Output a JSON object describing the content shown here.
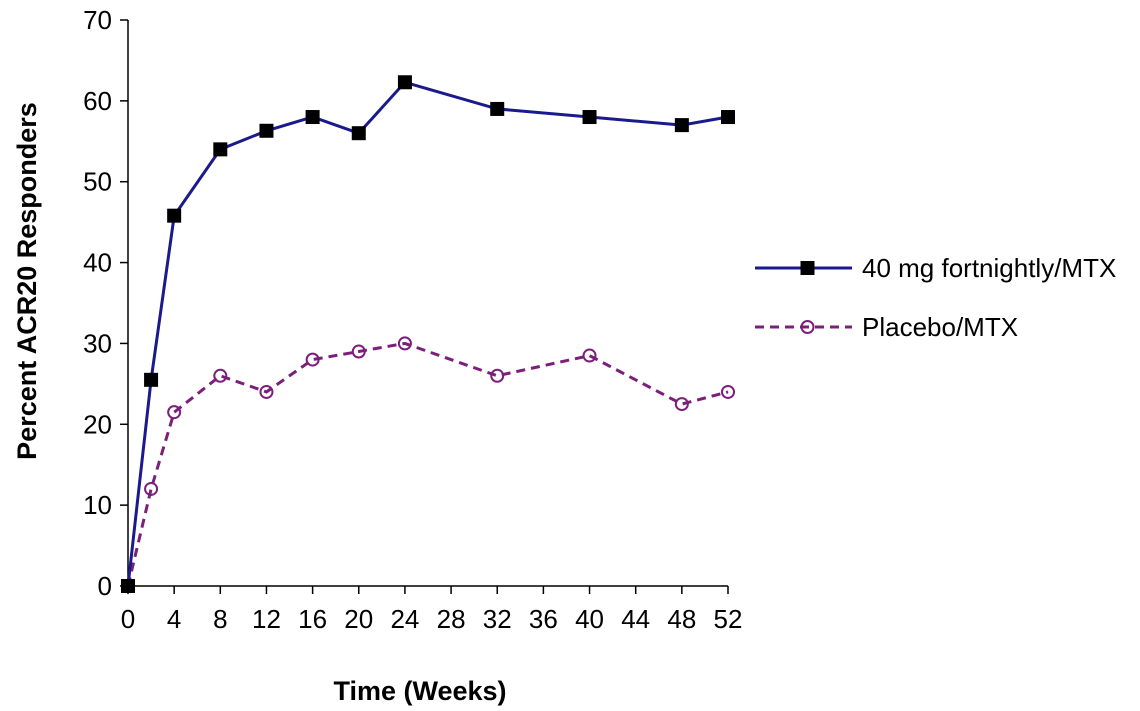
{
  "chart_data": {
    "type": "line",
    "xlabel": "Time (Weeks)",
    "ylabel": "Percent ACR20 Responders",
    "xlim": [
      0,
      52
    ],
    "ylim": [
      0,
      70
    ],
    "xticks": [
      0,
      4,
      8,
      12,
      16,
      20,
      24,
      28,
      32,
      36,
      40,
      44,
      48,
      52
    ],
    "yticks": [
      0,
      10,
      20,
      30,
      40,
      50,
      60,
      70
    ],
    "grid": false,
    "legend_position": "right",
    "series": [
      {
        "name": "40 mg fortnightly/MTX",
        "color": "#1a1a8c",
        "line_style": "solid",
        "marker": "filled-square",
        "points": [
          {
            "x": 0,
            "y": 0
          },
          {
            "x": 2,
            "y": 25.5
          },
          {
            "x": 4,
            "y": 45.8
          },
          {
            "x": 8,
            "y": 54
          },
          {
            "x": 12,
            "y": 56.3
          },
          {
            "x": 16,
            "y": 58
          },
          {
            "x": 20,
            "y": 56
          },
          {
            "x": 24,
            "y": 62.3
          },
          {
            "x": 32,
            "y": 59
          },
          {
            "x": 40,
            "y": 58
          },
          {
            "x": 48,
            "y": 57
          },
          {
            "x": 52,
            "y": 58
          }
        ]
      },
      {
        "name": "Placebo/MTX",
        "color": "#7b1f7b",
        "line_style": "dashed",
        "marker": "open-circle",
        "points": [
          {
            "x": 0,
            "y": 0
          },
          {
            "x": 2,
            "y": 12
          },
          {
            "x": 4,
            "y": 21.5
          },
          {
            "x": 8,
            "y": 26
          },
          {
            "x": 12,
            "y": 24
          },
          {
            "x": 16,
            "y": 28
          },
          {
            "x": 20,
            "y": 29
          },
          {
            "x": 24,
            "y": 30
          },
          {
            "x": 32,
            "y": 26
          },
          {
            "x": 40,
            "y": 28.5
          },
          {
            "x": 48,
            "y": 22.5
          },
          {
            "x": 52,
            "y": 24
          }
        ]
      }
    ]
  }
}
